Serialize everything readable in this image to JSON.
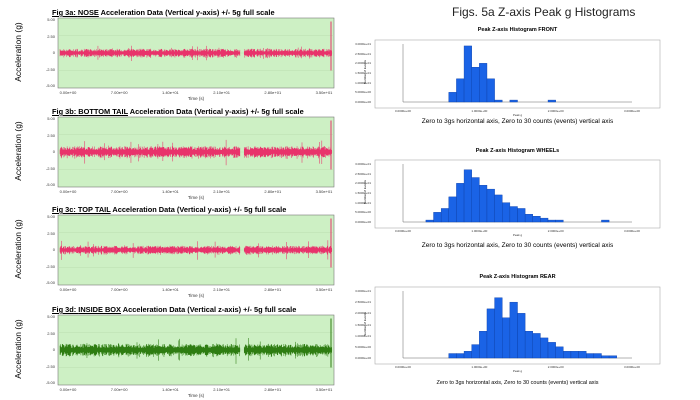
{
  "main_title": "Figs.  5a Z-axis Peak g Histograms",
  "accel_panels": [
    {
      "prefix": "Fig 3a: ",
      "name": "NOSE",
      "suffix": " Acceleration Data (Vertical y-axis) +/- 5g full scale",
      "ylabel": "Acceleration (g)",
      "time_label": "Time (s)",
      "color": "#e8336b",
      "yticks": [
        "5.00",
        "2.50",
        "0",
        "-2.50",
        "-5.00"
      ],
      "xticks": [
        "0.00e+00",
        "7.00e+00",
        "1.40e+01",
        "2.10e+01",
        "2.80e+01",
        "3.50e+01"
      ],
      "amp": 0.55,
      "spike": 0.2
    },
    {
      "prefix": "Fig 3b: ",
      "name": "BOTTOM TAIL",
      "suffix": " Acceleration Data (Vertical y-axis) +/- 5g full scale",
      "ylabel": "Acceleration (g)",
      "time_label": "Time (s)",
      "color": "#e8336b",
      "yticks": [
        "5.00",
        "2.50",
        "0",
        "-2.50",
        "-5.00"
      ],
      "xticks": [
        "0.00e+00",
        "7.00e+00",
        "1.40e+01",
        "2.10e+01",
        "2.80e+01",
        "3.50e+01"
      ],
      "amp": 0.75,
      "spike": 0.35
    },
    {
      "prefix": "Fig 3c: ",
      "name": "TOP TAIL",
      "suffix": " Acceleration Data (Vertical y-axis) +/- 5g full scale",
      "ylabel": "Acceleration (g)",
      "time_label": "Time (s)",
      "color": "#e8336b",
      "yticks": [
        "5.00",
        "2.50",
        "0",
        "-2.50",
        "-5.00"
      ],
      "xticks": [
        "0.00e+00",
        "7.00e+00",
        "1.40e+01",
        "2.10e+01",
        "2.80e+01",
        "3.50e+01"
      ],
      "amp": 0.55,
      "spike": 0.3
    },
    {
      "prefix": "Fig 3d: ",
      "name": "INSIDE BOX",
      "suffix": " Acceleration Data (Vertical z-axis) +/- 5g full scale",
      "ylabel": "Acceleration (g)",
      "time_label": "Time (s)",
      "color": "#2e7d12",
      "yticks": [
        "5.00",
        "2.50",
        "0",
        "-2.50",
        "-5.00"
      ],
      "xticks": [
        "0.00e+00",
        "7.00e+00",
        "1.40e+01",
        "2.10e+01",
        "2.80e+01",
        "3.50e+01"
      ],
      "amp": 0.8,
      "spike": 0.4
    }
  ],
  "chart_data": [
    {
      "type": "bar",
      "title": "Peak Z-axis Histogram FRONT",
      "caption": "Zero to 3gs horizontal axis, Zero to 30 counts (events) vertical axis",
      "xlabel": "Peak g",
      "ylabel": "Number of Events",
      "xlim": [
        0,
        3
      ],
      "ylim": [
        0,
        30
      ],
      "xticks": [
        "0.0000e+00",
        "1.0000e+00",
        "2.0000e+00",
        "3.0000e+00"
      ],
      "yticks": [
        "0.0000e+00",
        "5.0000e+00",
        "1.0000e+01",
        "1.5000e+01",
        "2.0000e+01",
        "2.5000e+01",
        "3.0000e+01"
      ],
      "bin_width": 0.1,
      "bin_starts": [
        0.6,
        0.7,
        0.8,
        0.9,
        1.0,
        1.1,
        1.2,
        1.3,
        1.4,
        1.5,
        1.6,
        1.7,
        1.8,
        1.9,
        2.0
      ],
      "values": [
        5,
        12,
        29,
        18,
        20,
        12,
        1,
        0,
        1,
        0,
        0,
        0,
        0,
        1,
        0
      ]
    },
    {
      "type": "bar",
      "title": "Peak Z-axis Histogram WHEELs",
      "caption": "Zero to 3gs horizontal axis, Zero to 30 counts (events) vertical axis",
      "xlabel": "Peak g",
      "ylabel": "Number of Events",
      "xlim": [
        0,
        3
      ],
      "ylim": [
        0,
        30
      ],
      "xticks": [
        "0.0000e+00",
        "1.0000e+00",
        "2.0000e+00",
        "3.0000e+00"
      ],
      "yticks": [
        "0.0000e+00",
        "5.0000e+00",
        "1.0000e+01",
        "1.5000e+01",
        "2.0000e+01",
        "2.5000e+01",
        "3.0000e+01"
      ],
      "bin_width": 0.1,
      "bin_starts": [
        0.3,
        0.4,
        0.5,
        0.6,
        0.7,
        0.8,
        0.9,
        1.0,
        1.1,
        1.2,
        1.3,
        1.4,
        1.5,
        1.6,
        1.7,
        1.8,
        1.9,
        2.0,
        2.1,
        2.2,
        2.3,
        2.4,
        2.5,
        2.6,
        2.7
      ],
      "values": [
        1,
        5,
        7,
        13,
        20,
        27,
        23,
        19,
        17,
        14,
        10,
        8,
        7,
        4,
        3,
        2,
        1,
        1,
        0,
        0,
        0,
        0,
        0,
        1,
        0
      ]
    },
    {
      "type": "bar",
      "title": "Peak Z-axis Histogram REAR",
      "caption": "Zero to 3gs horizontal axis, Zero to 30 counts (events) vertical axis",
      "xlabel": "Peak g",
      "ylabel": "Number of Events",
      "xlim": [
        0,
        3
      ],
      "ylim": [
        0,
        30
      ],
      "xticks": [
        "0.0000e+00",
        "1.0000e+00",
        "2.0000e+00",
        "3.0000e+00"
      ],
      "yticks": [
        "0.0000e+00",
        "5.0000e+00",
        "1.0000e+01",
        "1.5000e+01",
        "2.0000e+01",
        "2.5000e+01",
        "3.0000e+01"
      ],
      "bin_width": 0.1,
      "bin_starts": [
        0.6,
        0.7,
        0.8,
        0.9,
        1.0,
        1.1,
        1.2,
        1.3,
        1.4,
        1.5,
        1.6,
        1.7,
        1.8,
        1.9,
        2.0,
        2.1,
        2.2,
        2.3,
        2.4,
        2.5,
        2.6,
        2.7
      ],
      "values": [
        2,
        2,
        3,
        6,
        12,
        22,
        27,
        18,
        25,
        20,
        12,
        11,
        9,
        7,
        5,
        3,
        3,
        3,
        2,
        2,
        1,
        1
      ]
    }
  ]
}
